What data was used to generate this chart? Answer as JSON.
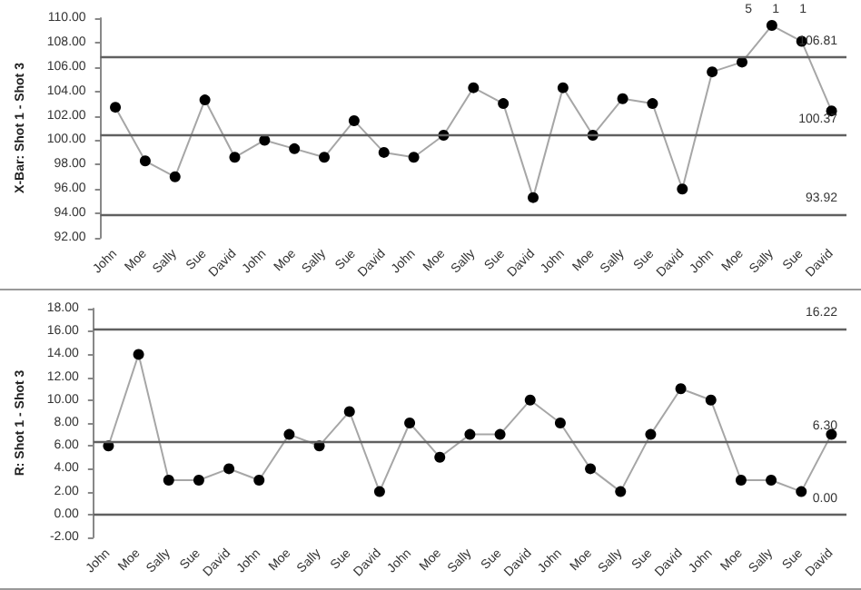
{
  "chart_data": [
    {
      "type": "line",
      "ylabel": "X-Bar: Shot 1 - Shot 3",
      "categories": [
        "John",
        "Moe",
        "Sally",
        "Sue",
        "David",
        "John",
        "Moe",
        "Sally",
        "Sue",
        "David",
        "John",
        "Moe",
        "Sally",
        "Sue",
        "David",
        "John",
        "Moe",
        "Sally",
        "Sue",
        "David",
        "John",
        "Moe",
        "Sally",
        "Sue",
        "David"
      ],
      "series": [
        {
          "color": "#000000",
          "values": [
            102.7,
            98.3,
            97.0,
            103.3,
            98.6,
            100.0,
            99.3,
            98.6,
            101.6,
            99.0,
            98.6,
            100.4,
            104.3,
            103.0,
            95.3,
            104.3,
            100.4,
            103.4,
            103.0,
            96.0,
            105.6,
            106.4,
            109.4,
            108.1,
            102.4
          ]
        }
      ],
      "ylim": [
        92,
        110
      ],
      "yticks": [
        {
          "value": 92,
          "label": "92.00"
        },
        {
          "value": 94,
          "label": "94.00"
        },
        {
          "value": 96,
          "label": "96.00"
        },
        {
          "value": 98,
          "label": "98.00"
        },
        {
          "value": 100,
          "label": "100.00"
        },
        {
          "value": 102,
          "label": "102.00"
        },
        {
          "value": 104,
          "label": "104.00"
        },
        {
          "value": 106,
          "label": "106.00"
        },
        {
          "value": 108,
          "label": "108.00"
        },
        {
          "value": 110,
          "label": "110.00"
        }
      ],
      "ref_lines": [
        {
          "axis": "y",
          "value": 106.81,
          "label": "106.81",
          "color": "#606060"
        },
        {
          "axis": "y",
          "value": 100.37,
          "label": "100.37",
          "color": "#606060"
        },
        {
          "axis": "y",
          "value": 93.92,
          "label": "93.92",
          "color": "#606060"
        }
      ],
      "annotations": [
        "5",
        "1",
        "1"
      ],
      "marker": "circle",
      "line_style": "solid",
      "grid": false
    },
    {
      "type": "line",
      "ylabel": "R: Shot 1 - Shot 3",
      "categories": [
        "John",
        "Moe",
        "Sally",
        "Sue",
        "David",
        "John",
        "Moe",
        "Sally",
        "Sue",
        "David",
        "John",
        "Moe",
        "Sally",
        "Sue",
        "David",
        "John",
        "Moe",
        "Sally",
        "Sue",
        "David",
        "John",
        "Moe",
        "Sally",
        "Sue",
        "David"
      ],
      "series": [
        {
          "color": "#000000",
          "values": [
            6,
            14,
            3,
            3,
            4,
            3,
            7,
            6,
            9,
            2,
            8,
            5,
            7,
            7,
            10,
            8,
            4,
            2,
            7,
            11,
            10,
            3,
            3,
            2,
            7
          ]
        }
      ],
      "ylim": [
        -2,
        18
      ],
      "yticks": [
        {
          "value": -2,
          "label": "-2.00"
        },
        {
          "value": 0,
          "label": "0.00"
        },
        {
          "value": 2,
          "label": "2.00"
        },
        {
          "value": 4,
          "label": "4.00"
        },
        {
          "value": 6,
          "label": "6.00"
        },
        {
          "value": 8,
          "label": "8.00"
        },
        {
          "value": 10,
          "label": "10.00"
        },
        {
          "value": 12,
          "label": "12.00"
        },
        {
          "value": 14,
          "label": "14.00"
        },
        {
          "value": 16,
          "label": "16.00"
        },
        {
          "value": 18,
          "label": "18.00"
        }
      ],
      "ref_lines": [
        {
          "axis": "y",
          "value": 16.22,
          "label": "16.22",
          "color": "#606060"
        },
        {
          "axis": "y",
          "value": 6.3,
          "label": "6.30",
          "color": "#606060"
        },
        {
          "axis": "y",
          "value": 0,
          "label": "0.00",
          "color": "#606060"
        }
      ],
      "marker": "circle",
      "line_style": "solid",
      "grid": false
    }
  ]
}
